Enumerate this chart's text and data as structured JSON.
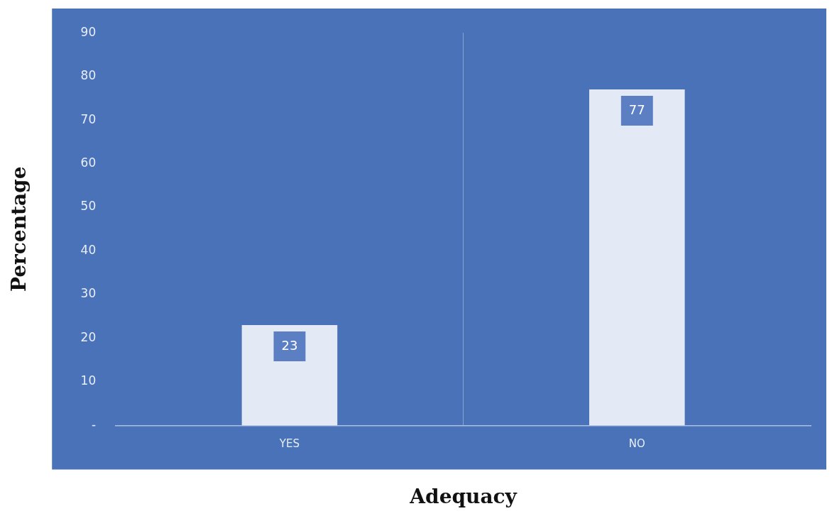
{
  "chart_data": {
    "type": "bar",
    "xlabel": "Adequacy",
    "ylabel": "Percentage",
    "categories": [
      "YES",
      "NO"
    ],
    "values": [
      23,
      77
    ],
    "color": "#e4eaf5",
    "ylim": [
      0,
      90
    ],
    "yticks": [
      {
        "value": 0,
        "label": "-"
      },
      10,
      20,
      30,
      40,
      50,
      60,
      70,
      80,
      90
    ],
    "grid": "x",
    "data_labels": true,
    "legend": false
  }
}
